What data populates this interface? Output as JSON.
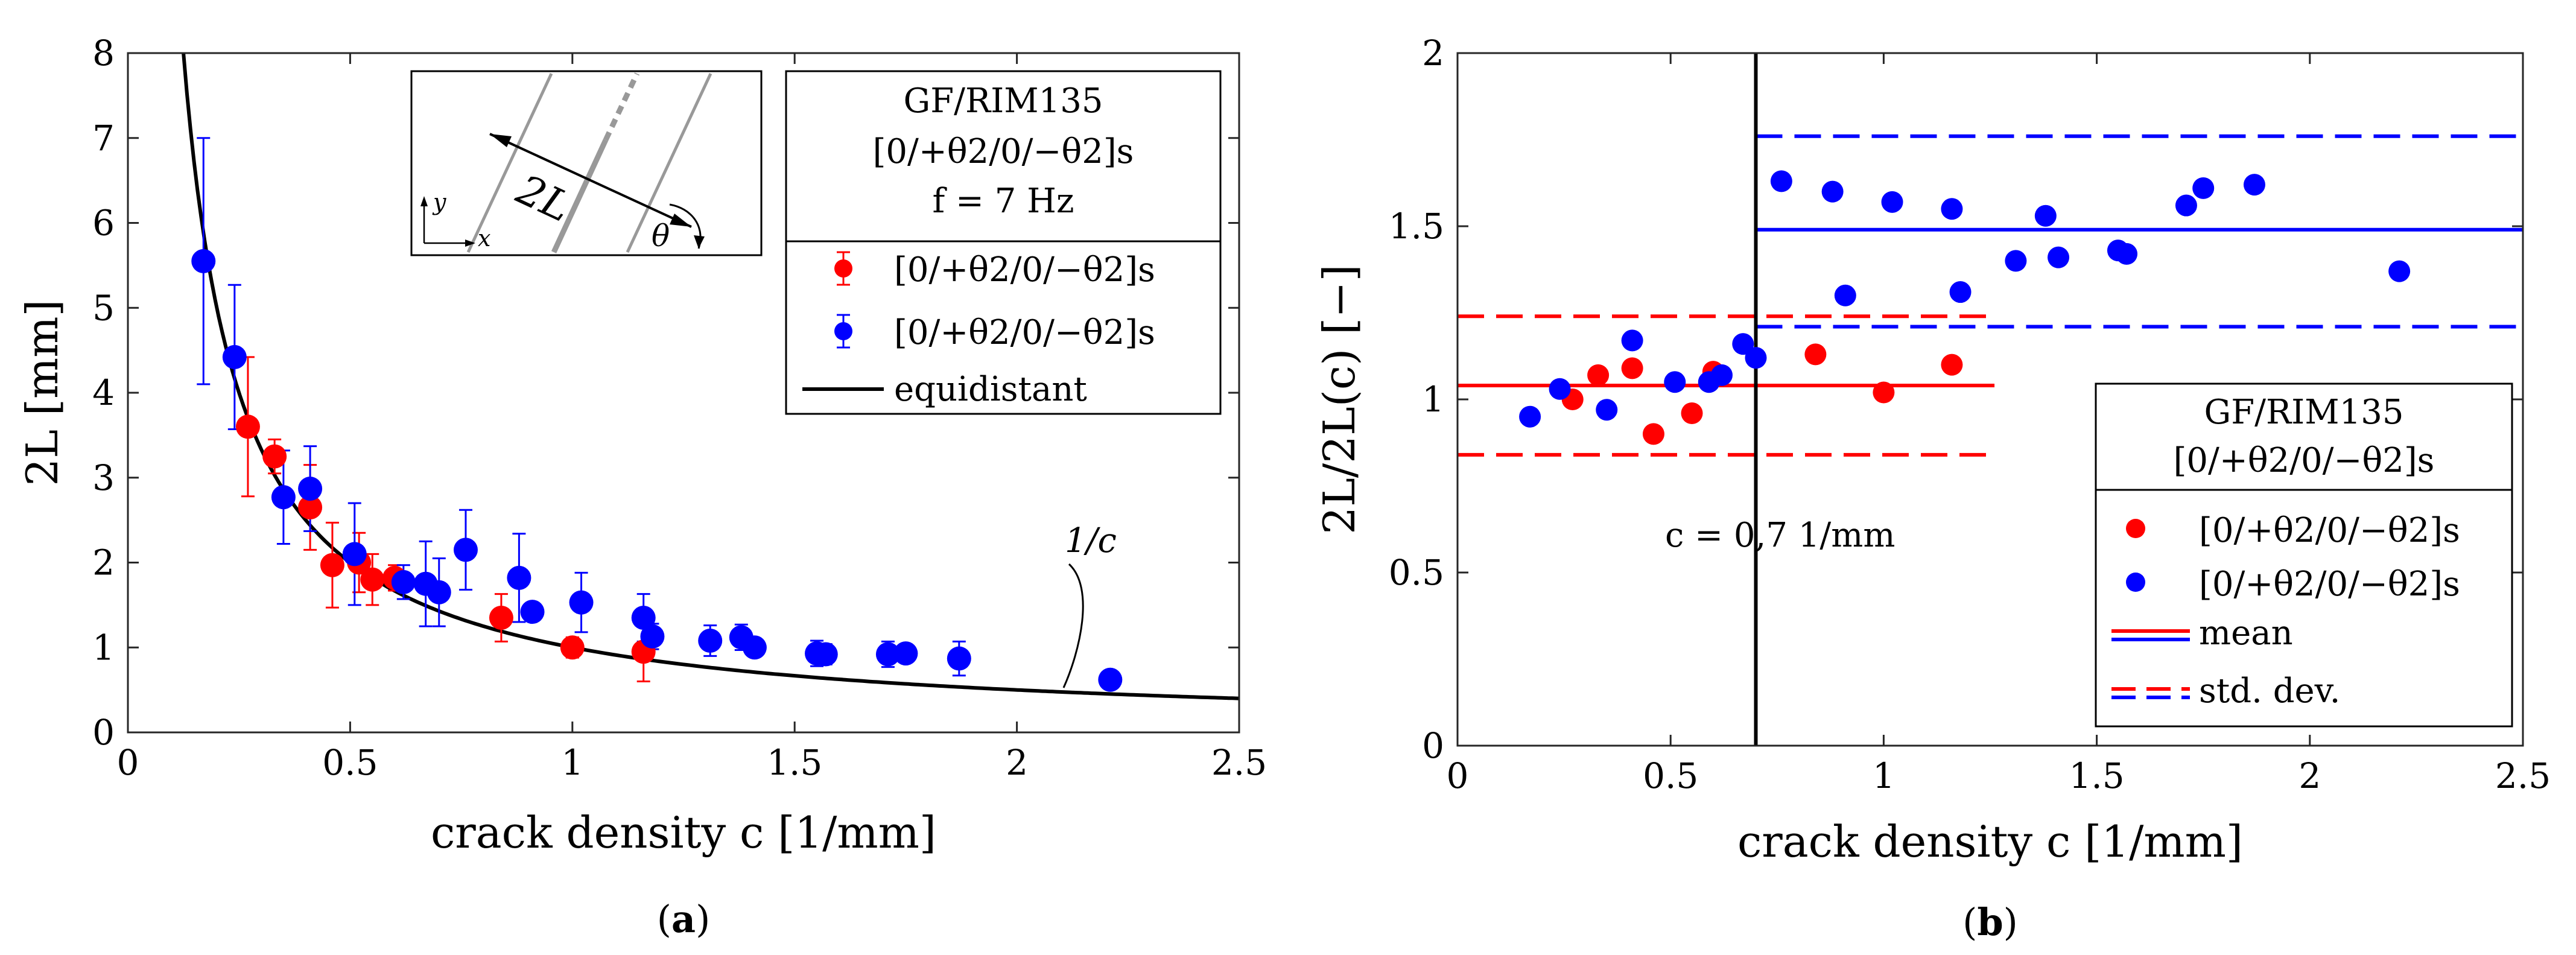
{
  "chart_data": [
    {
      "id": "a",
      "type": "scatter",
      "caption": "(a)",
      "caption_parts": [
        "(",
        "a",
        ")"
      ],
      "xlabel": "crack density c [1/mm]",
      "ylabel": "2L [mm]",
      "xlim": [
        0,
        2.5
      ],
      "ylim": [
        0,
        8
      ],
      "xticks": [
        "0",
        "0.5",
        "1",
        "1.5",
        "2",
        "2.5"
      ],
      "yticks": [
        "0",
        "1",
        "2",
        "3",
        "4",
        "5",
        "6",
        "7",
        "8"
      ],
      "legend": {
        "title_lines": [
          "GF/RIM135",
          "[0/+θ2/0/−θ2]s",
          "f = 7 Hz"
        ],
        "entries": [
          "[0/+θ2/0/−θ2]s",
          "[0/+θ2/0/−θ2]s",
          "equidistant"
        ]
      },
      "curve_annotation": "1/c",
      "inset_labels": [
        "2L",
        "θ",
        "y",
        "x"
      ],
      "curve": {
        "name": "equidistant",
        "formula": "1/c",
        "x_from": 0.125,
        "x_to": 2.5
      },
      "series": [
        {
          "name": "[0/+θ2/0/−θ2]s (θ2 ply bold)",
          "color": "#ff0000",
          "points": [
            {
              "x": 0.27,
              "y": 3.6,
              "err": 0.82
            },
            {
              "x": 0.33,
              "y": 3.25,
              "err": 0.2
            },
            {
              "x": 0.41,
              "y": 2.65,
              "err": 0.5
            },
            {
              "x": 0.46,
              "y": 1.97,
              "err": 0.5
            },
            {
              "x": 0.52,
              "y": 2.0,
              "err": 0.35
            },
            {
              "x": 0.55,
              "y": 1.8,
              "err": 0.3
            },
            {
              "x": 0.6,
              "y": 1.82,
              "err": 0.15
            },
            {
              "x": 0.84,
              "y": 1.35,
              "err": 0.28
            },
            {
              "x": 1.0,
              "y": 1.0,
              "err": 0.12
            },
            {
              "x": 1.16,
              "y": 0.95,
              "err": 0.35
            }
          ]
        },
        {
          "name": "[0/+θ2/0/−θ2]s (+θ2 ply bold)",
          "color": "#0000ff",
          "points": [
            {
              "x": 0.17,
              "y": 5.55,
              "err": 1.45
            },
            {
              "x": 0.24,
              "y": 4.42,
              "err": 0.85
            },
            {
              "x": 0.35,
              "y": 2.77,
              "err": 0.55
            },
            {
              "x": 0.41,
              "y": 2.87,
              "err": 0.5
            },
            {
              "x": 0.51,
              "y": 2.1,
              "err": 0.6
            },
            {
              "x": 0.62,
              "y": 1.77,
              "err": 0.2
            },
            {
              "x": 0.67,
              "y": 1.75,
              "err": 0.5
            },
            {
              "x": 0.7,
              "y": 1.65,
              "err": 0.4
            },
            {
              "x": 0.76,
              "y": 2.15,
              "err": 0.47
            },
            {
              "x": 0.88,
              "y": 1.82,
              "err": 0.52
            },
            {
              "x": 0.91,
              "y": 1.42,
              "err": 0.1
            },
            {
              "x": 1.02,
              "y": 1.53,
              "err": 0.35
            },
            {
              "x": 1.16,
              "y": 1.35,
              "err": 0.28
            },
            {
              "x": 1.18,
              "y": 1.13,
              "err": 0.15
            },
            {
              "x": 1.31,
              "y": 1.08,
              "err": 0.18
            },
            {
              "x": 1.38,
              "y": 1.12,
              "err": 0.15
            },
            {
              "x": 1.41,
              "y": 1.0,
              "err": 0.05
            },
            {
              "x": 1.55,
              "y": 0.93,
              "err": 0.15
            },
            {
              "x": 1.57,
              "y": 0.92,
              "err": 0.12
            },
            {
              "x": 1.71,
              "y": 0.92,
              "err": 0.15
            },
            {
              "x": 1.75,
              "y": 0.93,
              "err": 0.08
            },
            {
              "x": 1.87,
              "y": 0.87,
              "err": 0.2
            },
            {
              "x": 2.21,
              "y": 0.62,
              "err": 0.0
            }
          ]
        }
      ]
    },
    {
      "id": "b",
      "type": "scatter",
      "caption": "(b)",
      "caption_parts": [
        "(",
        "b",
        ")"
      ],
      "xlabel": "crack density c [1/mm]",
      "ylabel": "2L/2L(c) [−]",
      "xlim": [
        0,
        2.5
      ],
      "ylim": [
        0,
        2
      ],
      "xticks": [
        "0",
        "0.5",
        "1",
        "1.5",
        "2",
        "2.5"
      ],
      "yticks": [
        "0",
        "0.5",
        "1",
        "1.5",
        "2"
      ],
      "divider": {
        "x": 0.7,
        "label": "c = 0,7 1/mm"
      },
      "legend": {
        "title_lines": [
          "GF/RIM135",
          "[0/+θ2/0/−θ2]s"
        ],
        "entries": [
          "[0/+θ2/0/−θ2]s",
          "[0/+θ2/0/−θ2]s",
          "mean",
          "std. dev."
        ]
      },
      "stats": {
        "red": {
          "x_range": [
            0,
            1.26
          ],
          "mean": 1.04,
          "std_low": 0.84,
          "std_high": 1.24
        },
        "blue": {
          "x_range": [
            0.7,
            2.5
          ],
          "mean": 1.49,
          "std_low": 1.21,
          "std_high": 1.76
        }
      },
      "series": [
        {
          "name": "[0/+θ2/0/−θ2]s (θ2 ply bold)",
          "color": "#ff0000",
          "points": [
            {
              "x": 0.27,
              "y": 1.0
            },
            {
              "x": 0.33,
              "y": 1.07
            },
            {
              "x": 0.41,
              "y": 1.09
            },
            {
              "x": 0.46,
              "y": 0.9
            },
            {
              "x": 0.55,
              "y": 0.96
            },
            {
              "x": 0.6,
              "y": 1.08
            },
            {
              "x": 0.84,
              "y": 1.13
            },
            {
              "x": 1.0,
              "y": 1.02
            },
            {
              "x": 1.16,
              "y": 1.1
            }
          ]
        },
        {
          "name": "[0/+θ2/0/−θ2]s (+θ2 ply bold)",
          "color": "#0000ff",
          "points": [
            {
              "x": 0.17,
              "y": 0.95
            },
            {
              "x": 0.24,
              "y": 1.03
            },
            {
              "x": 0.35,
              "y": 0.97
            },
            {
              "x": 0.41,
              "y": 1.17
            },
            {
              "x": 0.51,
              "y": 1.05
            },
            {
              "x": 0.59,
              "y": 1.05
            },
            {
              "x": 0.62,
              "y": 1.07
            },
            {
              "x": 0.67,
              "y": 1.16
            },
            {
              "x": 0.7,
              "y": 1.12
            },
            {
              "x": 0.76,
              "y": 1.63
            },
            {
              "x": 0.88,
              "y": 1.6
            },
            {
              "x": 0.91,
              "y": 1.3
            },
            {
              "x": 1.02,
              "y": 1.57
            },
            {
              "x": 1.16,
              "y": 1.55
            },
            {
              "x": 1.18,
              "y": 1.31
            },
            {
              "x": 1.31,
              "y": 1.4
            },
            {
              "x": 1.38,
              "y": 1.53
            },
            {
              "x": 1.41,
              "y": 1.41
            },
            {
              "x": 1.55,
              "y": 1.43
            },
            {
              "x": 1.57,
              "y": 1.42
            },
            {
              "x": 1.71,
              "y": 1.56
            },
            {
              "x": 1.75,
              "y": 1.61
            },
            {
              "x": 1.87,
              "y": 1.62
            },
            {
              "x": 2.21,
              "y": 1.37
            }
          ]
        }
      ]
    }
  ]
}
